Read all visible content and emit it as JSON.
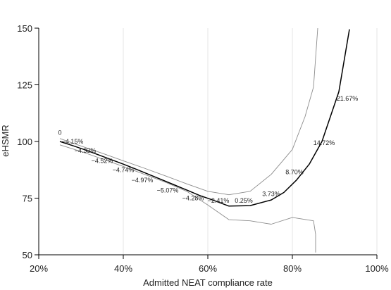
{
  "chart_data": {
    "type": "line",
    "xlabel": "Admitted NEAT compliance rate",
    "ylabel": "eHSMR",
    "xlim": [
      20,
      100
    ],
    "ylim": [
      50,
      150
    ],
    "x_ticks": [
      20,
      40,
      60,
      80,
      100
    ],
    "x_tick_labels": [
      "20%",
      "40%",
      "60%",
      "80%",
      "100%"
    ],
    "y_ticks": [
      50,
      75,
      100,
      125,
      150
    ],
    "y_tick_labels": [
      "50",
      "75",
      "100",
      "125",
      "150"
    ],
    "grid": "vertical",
    "series": [
      {
        "role": "estimate",
        "color": "#000000",
        "points": [
          [
            25,
            100
          ],
          [
            28,
            98.2
          ],
          [
            31,
            96.3
          ],
          [
            34,
            94.2
          ],
          [
            37,
            92.1
          ],
          [
            40,
            90
          ],
          [
            43,
            87.8
          ],
          [
            46,
            85.5
          ],
          [
            49,
            83.2
          ],
          [
            52,
            80.9
          ],
          [
            55,
            78.6
          ],
          [
            58,
            76.2
          ],
          [
            61,
            74.3
          ],
          [
            65,
            71.5
          ],
          [
            70,
            71.7
          ],
          [
            75,
            74.2
          ],
          [
            78,
            77.5
          ],
          [
            81,
            83
          ],
          [
            84,
            90
          ],
          [
            87,
            100
          ],
          [
            91,
            122
          ],
          [
            93.5,
            149.5
          ]
        ]
      },
      {
        "role": "upper-bound",
        "color": "#8c8c8c",
        "points": [
          [
            25,
            101.3
          ],
          [
            30,
            98
          ],
          [
            35,
            94.8
          ],
          [
            40,
            91.5
          ],
          [
            45,
            88.2
          ],
          [
            50,
            84.8
          ],
          [
            55,
            81.3
          ],
          [
            60,
            78
          ],
          [
            65,
            76.5
          ],
          [
            70,
            78
          ],
          [
            75,
            85.5
          ],
          [
            80,
            96.5
          ],
          [
            83,
            111
          ],
          [
            85,
            124
          ],
          [
            86,
            150
          ]
        ]
      },
      {
        "role": "lower-bound",
        "color": "#8c8c8c",
        "points": [
          [
            25,
            98.5
          ],
          [
            30,
            95.6
          ],
          [
            35,
            92.3
          ],
          [
            40,
            89
          ],
          [
            45,
            85.5
          ],
          [
            50,
            82
          ],
          [
            55,
            78
          ],
          [
            60,
            72
          ],
          [
            65,
            65.5
          ],
          [
            70,
            65
          ],
          [
            75,
            63.5
          ],
          [
            80,
            66.5
          ],
          [
            85,
            65
          ],
          [
            85.5,
            59
          ],
          [
            85.5,
            51
          ]
        ]
      }
    ],
    "data_labels": [
      {
        "text": "0",
        "x": 25,
        "y": 103
      },
      {
        "text": "−4.15%",
        "x": 28,
        "y": 99
      },
      {
        "text": "−4.33%",
        "x": 31,
        "y": 95
      },
      {
        "text": "−4.52%",
        "x": 35,
        "y": 90.5
      },
      {
        "text": "−4.74%",
        "x": 40,
        "y": 86.5
      },
      {
        "text": "−4.97%",
        "x": 44.5,
        "y": 82
      },
      {
        "text": "−5.07%",
        "x": 50.5,
        "y": 77.5
      },
      {
        "text": "−4.28%",
        "x": 56.5,
        "y": 74
      },
      {
        "text": "−2.41%",
        "x": 62.5,
        "y": 73
      },
      {
        "text": "0.25%",
        "x": 68.5,
        "y": 73
      },
      {
        "text": "3.73%",
        "x": 75,
        "y": 76
      },
      {
        "text": "8.70%",
        "x": 80.5,
        "y": 85.5
      },
      {
        "text": "14.72%",
        "x": 87.5,
        "y": 98.5
      },
      {
        "text": "21.67%",
        "x": 93,
        "y": 118
      }
    ]
  }
}
